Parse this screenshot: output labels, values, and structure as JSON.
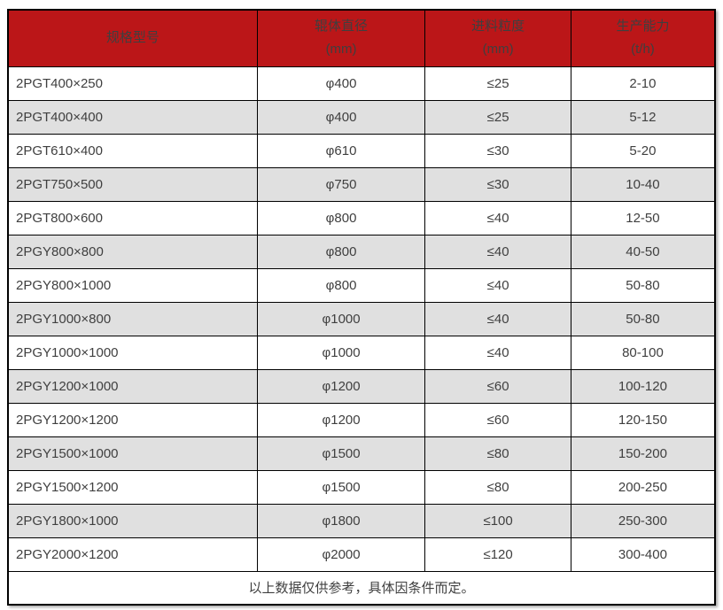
{
  "colors": {
    "header_bg": "#bb1618",
    "header_text": "#ffffff",
    "row_alt_bg": "#e0e0e0",
    "row_bg": "#ffffff",
    "border": "#000000",
    "text": "#3f3f3f"
  },
  "table": {
    "columns": [
      {
        "label": "规格型号",
        "unit": ""
      },
      {
        "label": "辊体直径",
        "unit": "(mm)"
      },
      {
        "label": "进料粒度",
        "unit": "(mm)"
      },
      {
        "label": "生产能力",
        "unit": "(t/h)"
      }
    ],
    "rows": [
      [
        "2PGT400×250",
        "φ400",
        "≤25",
        "2-10"
      ],
      [
        "2PGT400×400",
        "φ400",
        "≤25",
        "5-12"
      ],
      [
        "2PGT610×400",
        "φ610",
        "≤30",
        "5-20"
      ],
      [
        "2PGT750×500",
        "φ750",
        "≤30",
        "10-40"
      ],
      [
        "2PGT800×600",
        "φ800",
        "≤40",
        "12-50"
      ],
      [
        "2PGY800×800",
        "φ800",
        "≤40",
        "40-50"
      ],
      [
        "2PGY800×1000",
        "φ800",
        "≤40",
        "50-80"
      ],
      [
        "2PGY1000×800",
        "φ1000",
        "≤40",
        "50-80"
      ],
      [
        "2PGY1000×1000",
        "φ1000",
        "≤40",
        "80-100"
      ],
      [
        "2PGY1200×1000",
        "φ1200",
        "≤60",
        "100-120"
      ],
      [
        "2PGY1200×1200",
        "φ1200",
        "≤60",
        "120-150"
      ],
      [
        "2PGY1500×1000",
        "φ1500",
        "≤80",
        "150-200"
      ],
      [
        "2PGY1500×1200",
        "φ1500",
        "≤80",
        "200-250"
      ],
      [
        "2PGY1800×1000",
        "φ1800",
        "≤100",
        "250-300"
      ],
      [
        "2PGY2000×1200",
        "φ2000",
        "≤120",
        "300-400"
      ]
    ],
    "cell_names": [
      "cell-model",
      "cell-roller-diameter",
      "cell-feed-size",
      "cell-capacity"
    ],
    "footer_note": "以上数据仅供参考，具体因条件而定。"
  },
  "chart_data": {
    "type": "table",
    "title": "",
    "columns": [
      "规格型号",
      "辊体直径 (mm)",
      "进料粒度 (mm)",
      "生产能力 (t/h)"
    ],
    "rows": [
      [
        "2PGT400×250",
        "φ400",
        "≤25",
        "2-10"
      ],
      [
        "2PGT400×400",
        "φ400",
        "≤25",
        "5-12"
      ],
      [
        "2PGT610×400",
        "φ610",
        "≤30",
        "5-20"
      ],
      [
        "2PGT750×500",
        "φ750",
        "≤30",
        "10-40"
      ],
      [
        "2PGT800×600",
        "φ800",
        "≤40",
        "12-50"
      ],
      [
        "2PGY800×800",
        "φ800",
        "≤40",
        "40-50"
      ],
      [
        "2PGY800×1000",
        "φ800",
        "≤40",
        "50-80"
      ],
      [
        "2PGY1000×800",
        "φ1000",
        "≤40",
        "50-80"
      ],
      [
        "2PGY1000×1000",
        "φ1000",
        "≤40",
        "80-100"
      ],
      [
        "2PGY1200×1000",
        "φ1200",
        "≤60",
        "100-120"
      ],
      [
        "2PGY1200×1200",
        "φ1200",
        "≤60",
        "120-150"
      ],
      [
        "2PGY1500×1000",
        "φ1500",
        "≤80",
        "150-200"
      ],
      [
        "2PGY1500×1200",
        "φ1500",
        "≤80",
        "200-250"
      ],
      [
        "2PGY1800×1000",
        "φ1800",
        "≤100",
        "250-300"
      ],
      [
        "2PGY2000×1200",
        "φ2000",
        "≤120",
        "300-400"
      ]
    ],
    "footnote": "以上数据仅供参考，具体因条件而定。"
  }
}
